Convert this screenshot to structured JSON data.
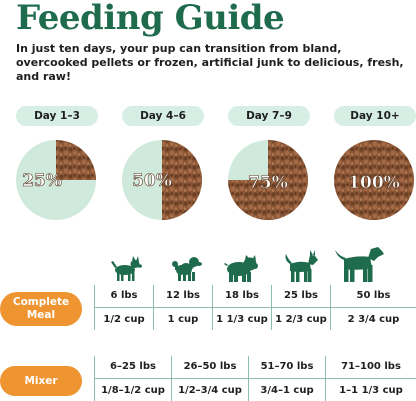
{
  "header": {
    "title": "Feeding Guide",
    "intro": "In just ten days, your pup can transition from bland, overcooked pellets or frozen, artificial junk to delicious, fresh, and raw!"
  },
  "stages": [
    {
      "label": "Day 1–3",
      "percent_text": "25%",
      "fresh_fraction": 0.25
    },
    {
      "label": "Day 4–6",
      "percent_text": "50%",
      "fresh_fraction": 0.5
    },
    {
      "label": "Day 7–9",
      "percent_text": "75%",
      "fresh_fraction": 0.75
    },
    {
      "label": "Day 10+",
      "percent_text": "100%",
      "fresh_fraction": 1.0
    }
  ],
  "dog_icons": [
    "small-dog-icon",
    "poodle-dog-icon",
    "bulldog-dog-icon",
    "husky-dog-icon",
    "large-dog-icon"
  ],
  "complete_meal": {
    "label": "Complete Meal",
    "weights": [
      "6 lbs",
      "12 lbs",
      "18 lbs",
      "25 lbs",
      "50 lbs"
    ],
    "amounts": [
      "1/2 cup",
      "1 cup",
      "1 1/3 cup",
      "1 2/3 cup",
      "2 3/4 cup"
    ]
  },
  "mixer": {
    "label": "Mixer",
    "weights": [
      "6–25 lbs",
      "26–50 lbs",
      "51–70 lbs",
      "71–100 lbs"
    ],
    "amounts": [
      "1/8–1/2 cup",
      "1/2–3/4 cup",
      "3/4–1 cup",
      "1–1 1/3 cup"
    ]
  },
  "colors": {
    "title": "#1f6b4e",
    "pill_bg": "#d7eee5",
    "fresh_green": "#cfe9dc",
    "kibble_brown": "#8a5636",
    "orange": "#ee9532",
    "dog": "#1f6b4e",
    "table_line": "#8fbcb0"
  }
}
